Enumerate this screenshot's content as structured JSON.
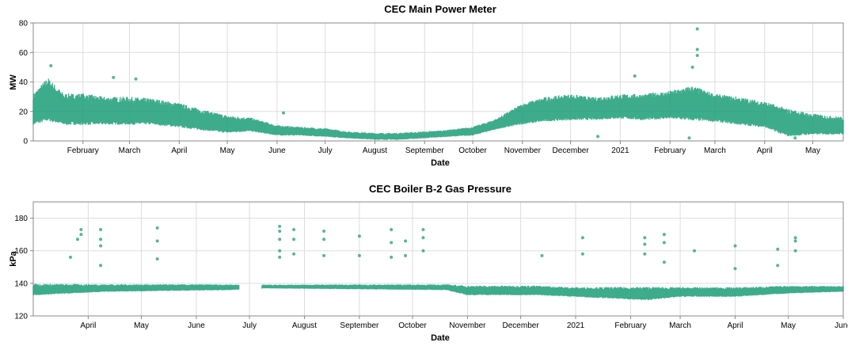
{
  "chart_data": [
    {
      "type": "scatter",
      "title": "CEC Main Power Meter",
      "xlabel": "Date",
      "ylabel": "MW",
      "ylim": [
        0,
        80
      ],
      "yticks": [
        0,
        20,
        40,
        60,
        80
      ],
      "xlim": [
        "2020-01-01",
        "2021-05-20"
      ],
      "xtick_labels": [
        "February",
        "March",
        "April",
        "May",
        "June",
        "July",
        "August",
        "September",
        "October",
        "November",
        "December",
        "2021",
        "February",
        "March",
        "April",
        "May"
      ],
      "xtick_dates": [
        "2020-02-01",
        "2020-03-01",
        "2020-04-01",
        "2020-05-01",
        "2020-06-01",
        "2020-07-01",
        "2020-08-01",
        "2020-09-01",
        "2020-10-01",
        "2020-11-01",
        "2020-12-01",
        "2021-01-01",
        "2021-02-01",
        "2021-03-01",
        "2021-04-01",
        "2021-05-01"
      ],
      "grid": true,
      "color": "#1b9e77",
      "series": [
        {
          "band": [
            [
              "2020-01-01",
              12,
              30
            ],
            [
              "2020-01-10",
              15,
              40
            ],
            [
              "2020-01-20",
              12,
              30
            ],
            [
              "2020-02-01",
              12,
              30
            ],
            [
              "2020-02-15",
              12,
              28
            ],
            [
              "2020-03-01",
              12,
              28
            ],
            [
              "2020-03-15",
              12,
              27
            ],
            [
              "2020-04-01",
              10,
              24
            ],
            [
              "2020-04-15",
              8,
              20
            ],
            [
              "2020-05-01",
              6,
              16
            ],
            [
              "2020-05-15",
              7,
              15
            ],
            [
              "2020-06-01",
              4,
              10
            ],
            [
              "2020-06-15",
              4,
              9
            ],
            [
              "2020-07-01",
              3,
              8
            ],
            [
              "2020-07-15",
              2,
              6
            ],
            [
              "2020-08-01",
              1,
              5
            ],
            [
              "2020-08-15",
              1,
              5
            ],
            [
              "2020-09-01",
              2,
              6
            ],
            [
              "2020-09-15",
              3,
              7
            ],
            [
              "2020-10-01",
              4,
              9
            ],
            [
              "2020-10-15",
              8,
              14
            ],
            [
              "2020-11-01",
              12,
              24
            ],
            [
              "2020-11-15",
              14,
              28
            ],
            [
              "2020-12-01",
              15,
              30
            ],
            [
              "2020-12-15",
              15,
              28
            ],
            [
              "2021-01-01",
              16,
              30
            ],
            [
              "2021-01-15",
              15,
              30
            ],
            [
              "2021-02-01",
              16,
              32
            ],
            [
              "2021-02-15",
              15,
              35
            ],
            [
              "2021-03-01",
              14,
              30
            ],
            [
              "2021-03-15",
              12,
              28
            ],
            [
              "2021-04-01",
              10,
              25
            ],
            [
              "2021-04-15",
              4,
              20
            ],
            [
              "2021-05-01",
              5,
              17
            ],
            [
              "2021-05-20",
              5,
              15
            ]
          ],
          "outliers": [
            [
              "2020-01-12",
              51
            ],
            [
              "2020-02-20",
              43
            ],
            [
              "2020-03-05",
              42
            ],
            [
              "2021-02-18",
              76
            ],
            [
              "2021-02-18",
              62
            ],
            [
              "2021-02-18",
              58
            ],
            [
              "2021-02-15",
              50
            ],
            [
              "2021-01-10",
              44
            ],
            [
              "2020-06-05",
              19
            ],
            [
              "2021-02-13",
              2
            ],
            [
              "2020-12-18",
              3
            ],
            [
              "2021-04-20",
              2
            ]
          ]
        }
      ]
    },
    {
      "type": "scatter",
      "title": "CEC Boiler B-2 Gas Pressure",
      "xlabel": "Date",
      "ylabel": "kPa",
      "ylim": [
        120,
        190
      ],
      "yticks": [
        120,
        140,
        160,
        180
      ],
      "xlim": [
        "2020-03-01",
        "2021-06-01"
      ],
      "xtick_labels": [
        "April",
        "May",
        "June",
        "July",
        "August",
        "September",
        "October",
        "November",
        "December",
        "2021",
        "February",
        "March",
        "April",
        "May",
        "June"
      ],
      "xtick_dates": [
        "2020-04-01",
        "2020-05-01",
        "2020-06-01",
        "2020-07-01",
        "2020-08-01",
        "2020-09-01",
        "2020-10-01",
        "2020-11-01",
        "2020-12-01",
        "2021-01-01",
        "2021-02-01",
        "2021-03-01",
        "2021-04-01",
        "2021-05-01",
        "2021-06-01"
      ],
      "grid": true,
      "color": "#1b9e77",
      "series": [
        {
          "band": [
            [
              "2020-03-01",
              133,
              139
            ],
            [
              "2020-04-10",
              135,
              139
            ],
            [
              "2020-06-20",
              136,
              139
            ],
            [
              "2020-07-10",
              137,
              139
            ],
            [
              "2020-10-20",
              136,
              139
            ],
            [
              "2020-11-01",
              133,
              138
            ],
            [
              "2020-12-10",
              133,
              138
            ],
            [
              "2021-01-01",
              132,
              137
            ],
            [
              "2021-02-10",
              130,
              137
            ],
            [
              "2021-03-01",
              132,
              137
            ],
            [
              "2021-04-01",
              132,
              137
            ],
            [
              "2021-05-01",
              134,
              138
            ],
            [
              "2021-06-01",
              135,
              138
            ]
          ],
          "gap": [
            "2020-06-25",
            "2020-07-08"
          ],
          "outliers": [
            [
              "2020-03-22",
              156
            ],
            [
              "2020-03-26",
              167
            ],
            [
              "2020-03-28",
              173
            ],
            [
              "2020-03-28",
              170
            ],
            [
              "2020-04-08",
              173
            ],
            [
              "2020-04-08",
              167
            ],
            [
              "2020-04-08",
              163
            ],
            [
              "2020-04-08",
              151
            ],
            [
              "2020-05-10",
              174
            ],
            [
              "2020-05-10",
              166
            ],
            [
              "2020-05-10",
              155
            ],
            [
              "2020-07-18",
              175
            ],
            [
              "2020-07-18",
              172
            ],
            [
              "2020-07-18",
              167
            ],
            [
              "2020-07-18",
              160
            ],
            [
              "2020-07-18",
              156
            ],
            [
              "2020-07-26",
              173
            ],
            [
              "2020-07-26",
              167
            ],
            [
              "2020-07-26",
              158
            ],
            [
              "2020-08-12",
              172
            ],
            [
              "2020-08-12",
              167
            ],
            [
              "2020-08-12",
              157
            ],
            [
              "2020-09-01",
              169
            ],
            [
              "2020-09-01",
              157
            ],
            [
              "2020-09-19",
              173
            ],
            [
              "2020-09-19",
              165
            ],
            [
              "2020-09-19",
              156
            ],
            [
              "2020-09-27",
              166
            ],
            [
              "2020-09-27",
              157
            ],
            [
              "2020-10-07",
              173
            ],
            [
              "2020-10-07",
              168
            ],
            [
              "2020-10-07",
              160
            ],
            [
              "2020-12-13",
              157
            ],
            [
              "2021-01-05",
              168
            ],
            [
              "2021-01-05",
              158
            ],
            [
              "2021-02-09",
              168
            ],
            [
              "2021-02-09",
              164
            ],
            [
              "2021-02-09",
              158
            ],
            [
              "2021-02-20",
              170
            ],
            [
              "2021-02-20",
              165
            ],
            [
              "2021-02-20",
              153
            ],
            [
              "2021-03-09",
              160
            ],
            [
              "2021-04-01",
              163
            ],
            [
              "2021-04-01",
              149
            ],
            [
              "2021-04-25",
              161
            ],
            [
              "2021-04-25",
              151
            ],
            [
              "2021-05-05",
              168
            ],
            [
              "2021-05-05",
              166
            ],
            [
              "2021-05-05",
              160
            ]
          ]
        }
      ]
    }
  ]
}
